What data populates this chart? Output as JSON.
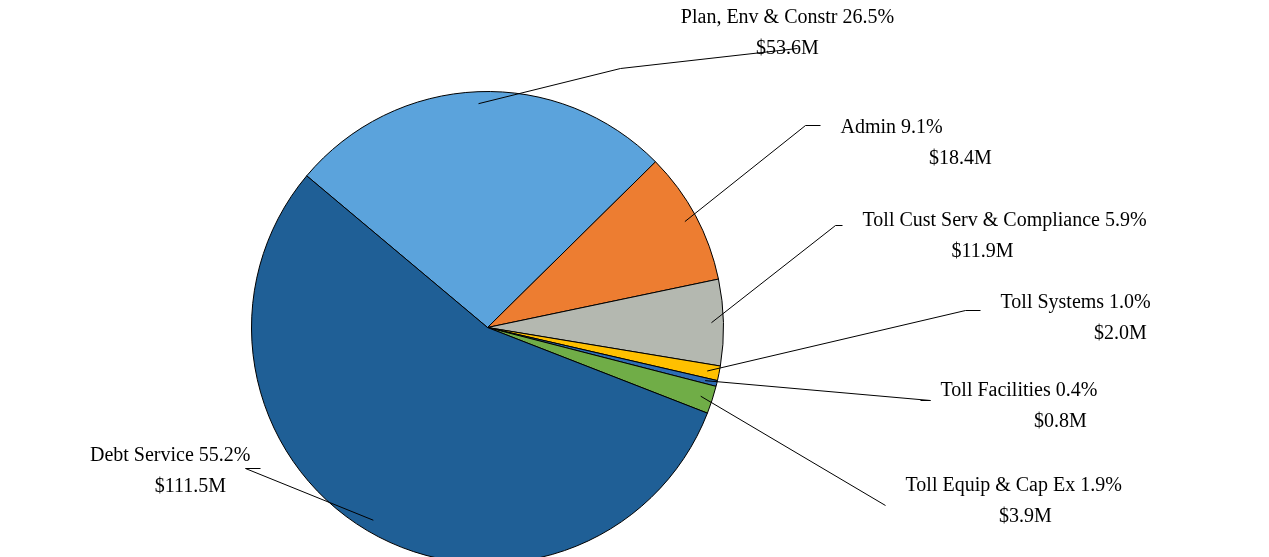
{
  "chart_data": {
    "type": "pie",
    "categories": [
      "Plan, Env & Constr",
      "Admin",
      "Toll Cust Serv & Compliance ",
      "Toll Systems",
      "Toll Facilities",
      "Toll Equip & Cap Ex",
      "Debt Service"
    ],
    "values": [
      26.5,
      9.1,
      5.9,
      1.0,
      0.4,
      1.9,
      55.2
    ],
    "value_labels": [
      "26.5%\n$53.6M",
      "9.1%\n$18.4M",
      "5.9%\n$11.9M",
      "1.0%\n$2.0M",
      "0.4%\n$0.8M",
      "1.9%\n$3.9M",
      "55.2%\n$111.5M"
    ],
    "colors": [
      "#5ba3dc",
      "#ed7d31",
      "#b4b8b0",
      "#ffc000",
      "#2e6db4",
      "#70ad47",
      "#1f5f96"
    ]
  }
}
